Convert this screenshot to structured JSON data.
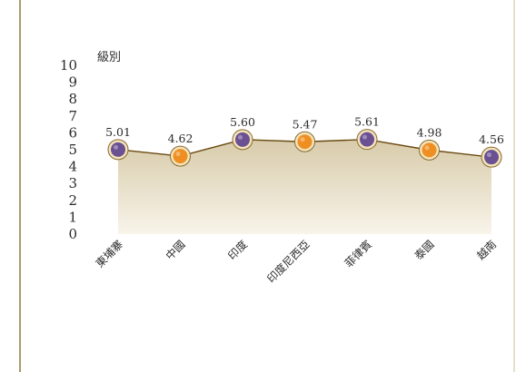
{
  "chart_data": {
    "type": "area",
    "title": "",
    "xlabel": "",
    "ylabel": "級別",
    "ylim": [
      0,
      10
    ],
    "yticks": [
      "0",
      "1",
      "2",
      "3",
      "4",
      "5",
      "6",
      "7",
      "8",
      "9",
      "10"
    ],
    "categories": [
      "東埔寨",
      "中國",
      "印度",
      "印度尼西亞",
      "菲律賓",
      "泰國",
      "越南"
    ],
    "series": [
      {
        "values": [
          5.01,
          4.62,
          5.6,
          5.47,
          5.61,
          4.98,
          4.56
        ],
        "labels": [
          "5.01",
          "4.62",
          "5.60",
          "5.47",
          "5.61",
          "4.98",
          "4.56"
        ]
      }
    ],
    "grid": false,
    "legend": "none"
  },
  "colors": {
    "frame": "#8b7a3d",
    "line": "#6b4a12",
    "area_top": "#d8cbaa",
    "area_bottom": "#f8f4ea",
    "marker_purple": "#6b5192",
    "marker_orange": "#ef8f22",
    "marker_ring": "#f3e4bd",
    "marker_ring_stroke": "#8a6a2e"
  }
}
